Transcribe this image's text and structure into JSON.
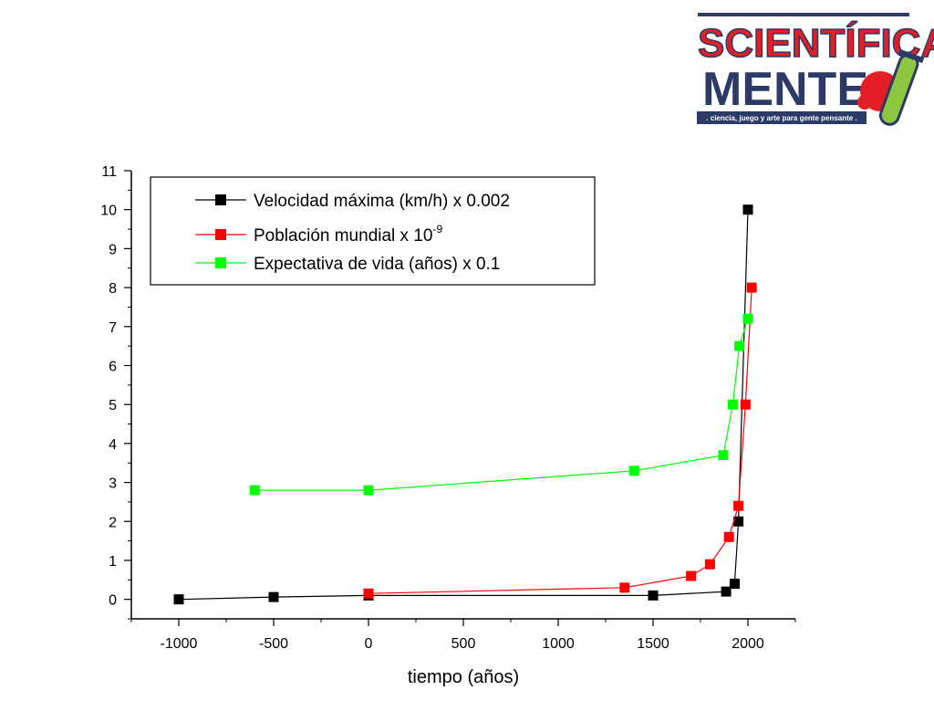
{
  "logo": {
    "line1": "SCIENTÍFICA",
    "line2": "MENTE",
    "tagline": ". ciencia, juego y arte para gente pensante .",
    "colors": {
      "red": "#e31e24",
      "navy": "#2b3a67",
      "green": "#8dc63f"
    }
  },
  "chart_data": {
    "type": "line",
    "xlabel": "tiempo (años)",
    "ylabel": "",
    "xlim": [
      -1250,
      2250
    ],
    "ylim": [
      -0.5,
      11
    ],
    "xticks": [
      -1000,
      -500,
      0,
      500,
      1000,
      1500,
      2000
    ],
    "yticks": [
      0,
      1,
      2,
      3,
      4,
      5,
      6,
      7,
      8,
      9,
      10,
      11
    ],
    "legend_position": "top-left",
    "series": [
      {
        "name": "Velocidad máxima (km/h) x 0.002",
        "color": "#000000",
        "points": [
          [
            -1000,
            0.0
          ],
          [
            -500,
            0.06
          ],
          [
            0,
            0.1
          ],
          [
            1500,
            0.1
          ],
          [
            1885,
            0.2
          ],
          [
            1930,
            0.4
          ],
          [
            1950,
            2.0
          ],
          [
            2000,
            10.0
          ]
        ]
      },
      {
        "name": "Población mundial x 10",
        "name_superscript": "-9",
        "color": "#ff0000",
        "points": [
          [
            0,
            0.15
          ],
          [
            1350,
            0.3
          ],
          [
            1700,
            0.6
          ],
          [
            1800,
            0.9
          ],
          [
            1900,
            1.6
          ],
          [
            1950,
            2.4
          ],
          [
            1987,
            5.0
          ],
          [
            2020,
            8.0
          ]
        ]
      },
      {
        "name": "Expectativa de vida (años) x 0.1",
        "color": "#00ff00",
        "points": [
          [
            -600,
            2.8
          ],
          [
            0,
            2.8
          ],
          [
            1400,
            3.3
          ],
          [
            1870,
            3.7
          ],
          [
            1920,
            5.0
          ],
          [
            1955,
            6.5
          ],
          [
            2000,
            7.2
          ]
        ]
      }
    ]
  }
}
